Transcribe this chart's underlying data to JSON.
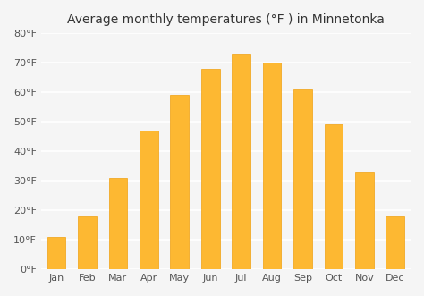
{
  "months": [
    "Jan",
    "Feb",
    "Mar",
    "Apr",
    "May",
    "Jun",
    "Jul",
    "Aug",
    "Sep",
    "Oct",
    "Nov",
    "Dec"
  ],
  "temperatures": [
    11,
    18,
    31,
    47,
    59,
    68,
    73,
    70,
    61,
    49,
    33,
    18
  ],
  "bar_color": "#FDB832",
  "bar_edge_color": "#F0A010",
  "title": "Average monthly temperatures (°F ) in Minnetonka",
  "ylim": [
    0,
    80
  ],
  "yticks": [
    0,
    10,
    20,
    30,
    40,
    50,
    60,
    70,
    80
  ],
  "ytick_labels": [
    "0°F",
    "10°F",
    "20°F",
    "30°F",
    "40°F",
    "50°F",
    "60°F",
    "70°F",
    "80°F"
  ],
  "background_color": "#f5f5f5",
  "grid_color": "#ffffff",
  "title_fontsize": 10,
  "tick_fontsize": 8
}
